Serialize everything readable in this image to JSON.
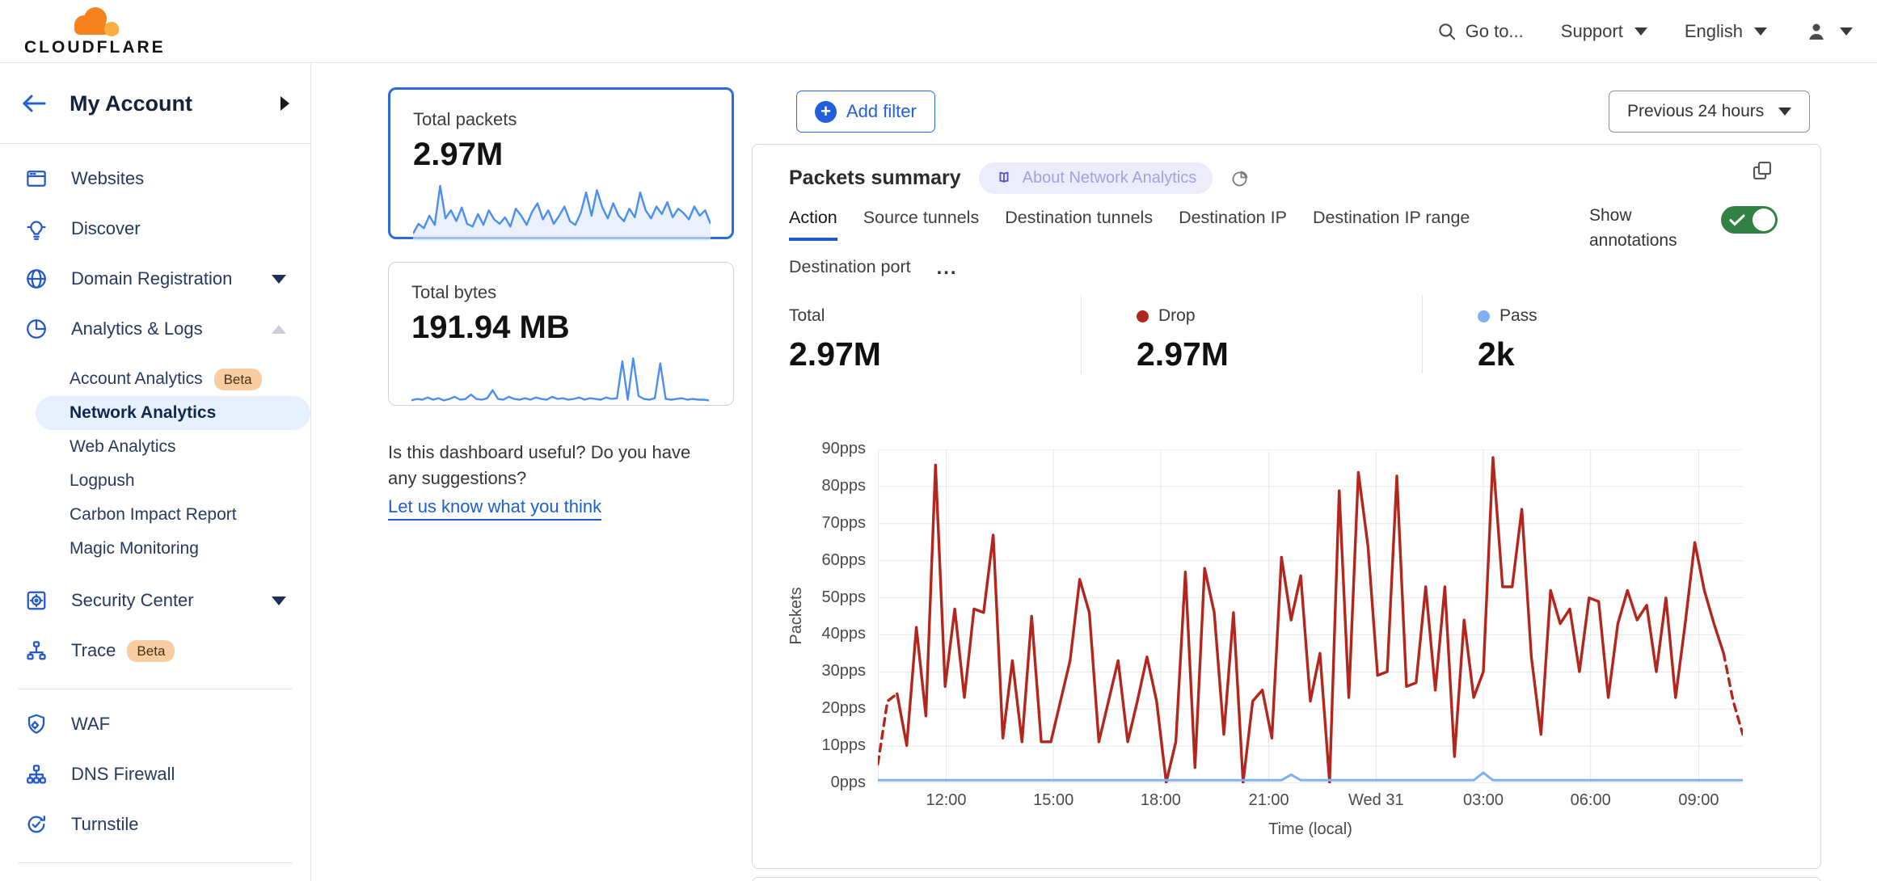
{
  "header": {
    "brand": "CLOUDFLARE",
    "goto": "Go to...",
    "support": "Support",
    "language": "English"
  },
  "sidebar": {
    "title": "My Account",
    "items": [
      {
        "type": "item",
        "icon": "browser-icon",
        "label": "Websites"
      },
      {
        "type": "item",
        "icon": "lightbulb-icon",
        "label": "Discover"
      },
      {
        "type": "item",
        "icon": "globe-icon",
        "label": "Domain Registration",
        "caret": "down"
      },
      {
        "type": "item",
        "icon": "pie-chart-icon",
        "label": "Analytics & Logs",
        "caret": "up"
      },
      {
        "type": "subgroup",
        "items": [
          {
            "label": "Account Analytics",
            "badge": "Beta"
          },
          {
            "label": "Network Analytics",
            "selected": true
          },
          {
            "label": "Web Analytics"
          },
          {
            "label": "Logpush"
          },
          {
            "label": "Carbon Impact Report"
          },
          {
            "label": "Magic Monitoring"
          }
        ]
      },
      {
        "type": "item",
        "icon": "safe-icon",
        "label": "Security Center",
        "caret": "down"
      },
      {
        "type": "item",
        "icon": "trace-icon",
        "label": "Trace",
        "badge": "Beta"
      },
      {
        "type": "divider"
      },
      {
        "type": "item",
        "icon": "shield-gear-icon",
        "label": "WAF"
      },
      {
        "type": "item",
        "icon": "dns-tree-icon",
        "label": "DNS Firewall"
      },
      {
        "type": "item",
        "icon": "turnstile-icon",
        "label": "Turnstile"
      },
      {
        "type": "divider"
      },
      {
        "type": "item",
        "icon": "burst-icon",
        "label": ""
      }
    ]
  },
  "summary_cards": [
    {
      "label": "Total packets",
      "value": "2.97M",
      "selected": true,
      "sparkline": [
        12,
        30,
        22,
        45,
        28,
        100,
        40,
        55,
        35,
        60,
        30,
        25,
        48,
        28,
        55,
        38,
        30,
        42,
        25,
        58,
        45,
        28,
        52,
        68,
        38,
        55,
        30,
        45,
        62,
        35,
        28,
        50,
        88,
        45,
        92,
        60,
        40,
        68,
        45,
        35,
        58,
        42,
        88,
        55,
        40,
        62,
        48,
        70,
        42,
        58,
        50,
        38,
        62,
        45,
        55,
        30
      ]
    },
    {
      "label": "Total bytes",
      "value": "191.94 MB",
      "selected": false,
      "sparkline": [
        4,
        6,
        5,
        8,
        5,
        7,
        4,
        6,
        9,
        5,
        6,
        12,
        6,
        5,
        7,
        18,
        6,
        5,
        9,
        6,
        5,
        7,
        5,
        8,
        6,
        5,
        9,
        6,
        7,
        5,
        6,
        8,
        5,
        7,
        6,
        5,
        8,
        6,
        7,
        58,
        5,
        62,
        10,
        6,
        5,
        7,
        55,
        6,
        5,
        6,
        7,
        5,
        6,
        5,
        5,
        4
      ]
    }
  ],
  "feedback": {
    "question": "Is this dashboard useful? Do you have any suggestions?",
    "link": "Let us know what you think"
  },
  "toolbar": {
    "add_filter": "Add filter",
    "time_range": "Previous 24 hours"
  },
  "panel": {
    "title": "Packets summary",
    "about_badge": "About Network Analytics",
    "tabs": [
      "Action",
      "Source tunnels",
      "Destination tunnels",
      "Destination IP",
      "Destination IP range",
      "Destination port"
    ],
    "active_tab": "Action",
    "more_tabs_label": "...",
    "show_annotations": "Show annotations",
    "annotations_on": true,
    "stats": [
      {
        "label": "Total",
        "value": "2.97M",
        "dot": null
      },
      {
        "label": "Drop",
        "value": "2.97M",
        "dot": "#b2261d"
      },
      {
        "label": "Pass",
        "value": "2k",
        "dot": "#7fb0f5"
      }
    ]
  },
  "chart_data": {
    "type": "line",
    "title": "Packets summary",
    "xlabel": "Time (local)",
    "ylabel": "Packets",
    "ylim": [
      0,
      90
    ],
    "ytick_step": 10,
    "ytick_suffix": "pps",
    "grid": true,
    "legend_position": "top-stats-row",
    "xticks": [
      {
        "label": "12:00",
        "pos": 0.079
      },
      {
        "label": "15:00",
        "pos": 0.203
      },
      {
        "label": "18:00",
        "pos": 0.327
      },
      {
        "label": "21:00",
        "pos": 0.452
      },
      {
        "label": "Wed 31",
        "pos": 0.576
      },
      {
        "label": "03:00",
        "pos": 0.7
      },
      {
        "label": "06:00",
        "pos": 0.824
      },
      {
        "label": "09:00",
        "pos": 0.949
      }
    ],
    "series": [
      {
        "name": "Drop",
        "color": "#b2261d",
        "dashed_head_points": 2,
        "dashed_tail_points": 2,
        "values": [
          5,
          22,
          24,
          10,
          42,
          18,
          86,
          26,
          47,
          23,
          47,
          46,
          67,
          12,
          33,
          11,
          45,
          11,
          11,
          22,
          33,
          55,
          46,
          11,
          22,
          33,
          11,
          22,
          34,
          22,
          0,
          11,
          57,
          4,
          58,
          46,
          13,
          46,
          0,
          22,
          25,
          12,
          61,
          44,
          56,
          22,
          35,
          0,
          79,
          23,
          84,
          64,
          29,
          30,
          83,
          26,
          27,
          53,
          25,
          53,
          7,
          44,
          23,
          30,
          88,
          53,
          53,
          74,
          34,
          13,
          52,
          43,
          47,
          30,
          50,
          49,
          23,
          43,
          52,
          44,
          48,
          30,
          50,
          23,
          43,
          65,
          52,
          43,
          35,
          22,
          13
        ]
      },
      {
        "name": "Pass",
        "color": "#7fb0f5",
        "baseline": 0.6,
        "bumps": [
          [
            43,
            2.1
          ],
          [
            63,
            2.6
          ]
        ]
      }
    ]
  }
}
